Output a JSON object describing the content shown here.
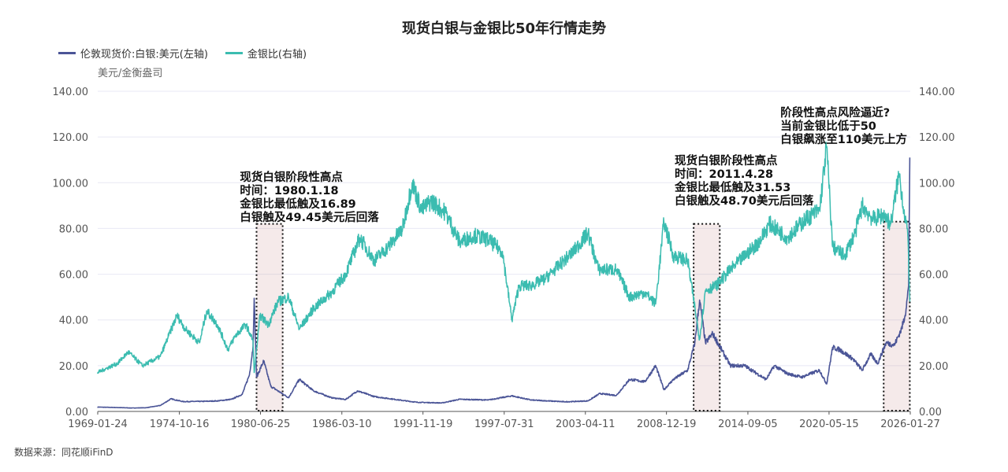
{
  "chart_data": {
    "type": "line",
    "title": "现货白银与金银比50年行情走势",
    "unit_label": "美元/金衡盎司",
    "source": "数据来源：同花顺iFinD",
    "x_ticks": [
      "1969-01-24",
      "1974-10-16",
      "1980-06-25",
      "1986-03-10",
      "1991-11-19",
      "1997-07-31",
      "2003-04-11",
      "2008-12-19",
      "2014-09-05",
      "2020-05-15",
      "2026-01-27"
    ],
    "xlim": [
      "1969-01-24",
      "2026-01-27"
    ],
    "y_left": {
      "lim": [
        0,
        140
      ],
      "ticks": [
        "0.00",
        "20.00",
        "40.00",
        "60.00",
        "80.00",
        "100.00",
        "120.00",
        "140.00"
      ]
    },
    "y_right": {
      "lim": [
        0,
        140
      ],
      "ticks": [
        "0.00",
        "20.00",
        "40.00",
        "60.00",
        "80.00",
        "100.00",
        "120.00",
        "140.00"
      ]
    },
    "grid": true,
    "legend_position": "top-left",
    "series": [
      {
        "name": "伦敦现货价:白银:美元(左轴)",
        "axis": "left",
        "color": "#4b5597",
        "points": [
          [
            "1969-01",
            1.9
          ],
          [
            "1970-06",
            1.7
          ],
          [
            "1971-06",
            1.5
          ],
          [
            "1972-06",
            1.6
          ],
          [
            "1973-06",
            2.6
          ],
          [
            "1974-03",
            5.5
          ],
          [
            "1975-01",
            4.3
          ],
          [
            "1976-06",
            4.4
          ],
          [
            "1977-06",
            4.6
          ],
          [
            "1978-06",
            5.3
          ],
          [
            "1979-03",
            7.5
          ],
          [
            "1979-09",
            16
          ],
          [
            "1979-12",
            28
          ],
          [
            "1980-01",
            49.45
          ],
          [
            "1980-03",
            15
          ],
          [
            "1980-09",
            22
          ],
          [
            "1981-03",
            11
          ],
          [
            "1982-06",
            6
          ],
          [
            "1983-03",
            14
          ],
          [
            "1984-03",
            9
          ],
          [
            "1985-06",
            6
          ],
          [
            "1986-06",
            5.2
          ],
          [
            "1987-04",
            9
          ],
          [
            "1988-06",
            6.5
          ],
          [
            "1990-06",
            4.8
          ],
          [
            "1991-06",
            4
          ],
          [
            "1993-03",
            3.7
          ],
          [
            "1994-06",
            5.3
          ],
          [
            "1996-06",
            5
          ],
          [
            "1998-02",
            6.8
          ],
          [
            "1999-06",
            5
          ],
          [
            "2001-11",
            4.2
          ],
          [
            "2003-06",
            4.6
          ],
          [
            "2004-04",
            7.8
          ],
          [
            "2005-06",
            7
          ],
          [
            "2006-05",
            14
          ],
          [
            "2007-06",
            13
          ],
          [
            "2008-03",
            20
          ],
          [
            "2008-10",
            9.5
          ],
          [
            "2009-06",
            14
          ],
          [
            "2010-06",
            18
          ],
          [
            "2010-12",
            30
          ],
          [
            "2011-04",
            48.7
          ],
          [
            "2011-09",
            30
          ],
          [
            "2012-03",
            34
          ],
          [
            "2013-06",
            20
          ],
          [
            "2014-06",
            20
          ],
          [
            "2015-12",
            14
          ],
          [
            "2016-07",
            20
          ],
          [
            "2017-06",
            16.5
          ],
          [
            "2018-06",
            15
          ],
          [
            "2019-09",
            18
          ],
          [
            "2020-03",
            12
          ],
          [
            "2020-08",
            28
          ],
          [
            "2021-02",
            27
          ],
          [
            "2022-01",
            23
          ],
          [
            "2022-09",
            18
          ],
          [
            "2023-04",
            25
          ],
          [
            "2023-10",
            21
          ],
          [
            "2024-05",
            30
          ],
          [
            "2024-12",
            29
          ],
          [
            "2025-06",
            36
          ],
          [
            "2025-09",
            42
          ],
          [
            "2025-11",
            50
          ],
          [
            "2025-12",
            55
          ],
          [
            "2026-01",
            111
          ]
        ]
      },
      {
        "name": "金银比(右轴)",
        "axis": "right",
        "color": "#3bbcb0",
        "points": [
          [
            "1969-01",
            17
          ],
          [
            "1970-06",
            21
          ],
          [
            "1971-03",
            26
          ],
          [
            "1972-03",
            20
          ],
          [
            "1973-06",
            24
          ],
          [
            "1974-01",
            33
          ],
          [
            "1974-08",
            42
          ],
          [
            "1975-03",
            36
          ],
          [
            "1976-03",
            30
          ],
          [
            "1976-09",
            44
          ],
          [
            "1977-06",
            38
          ],
          [
            "1978-03",
            27
          ],
          [
            "1978-09",
            33
          ],
          [
            "1979-06",
            38
          ],
          [
            "1979-12",
            31
          ],
          [
            "1980-01",
            17
          ],
          [
            "1980-06",
            42
          ],
          [
            "1981-01",
            38
          ],
          [
            "1981-09",
            48
          ],
          [
            "1982-06",
            50
          ],
          [
            "1983-03",
            36
          ],
          [
            "1984-03",
            45
          ],
          [
            "1985-06",
            52
          ],
          [
            "1986-06",
            60
          ],
          [
            "1987-06",
            76
          ],
          [
            "1988-06",
            66
          ],
          [
            "1989-06",
            72
          ],
          [
            "1990-06",
            80
          ],
          [
            "1991-02",
            100
          ],
          [
            "1991-10",
            88
          ],
          [
            "1992-06",
            92
          ],
          [
            "1993-06",
            87
          ],
          [
            "1994-06",
            74
          ],
          [
            "1995-06",
            77
          ],
          [
            "1996-06",
            75
          ],
          [
            "1997-06",
            70
          ],
          [
            "1998-02",
            40
          ],
          [
            "1998-08",
            55
          ],
          [
            "1999-06",
            55
          ],
          [
            "2000-06",
            58
          ],
          [
            "2001-06",
            64
          ],
          [
            "2002-06",
            70
          ],
          [
            "2003-06",
            78
          ],
          [
            "2004-03",
            62
          ],
          [
            "2005-06",
            62
          ],
          [
            "2006-05",
            50
          ],
          [
            "2007-06",
            52
          ],
          [
            "2008-03",
            47
          ],
          [
            "2008-10",
            83
          ],
          [
            "2009-06",
            68
          ],
          [
            "2010-06",
            66
          ],
          [
            "2011-04",
            31.53
          ],
          [
            "2011-09",
            53
          ],
          [
            "2012-06",
            55
          ],
          [
            "2013-06",
            62
          ],
          [
            "2014-06",
            68
          ],
          [
            "2015-06",
            74
          ],
          [
            "2016-03",
            82
          ],
          [
            "2017-06",
            76
          ],
          [
            "2018-09",
            84
          ],
          [
            "2019-09",
            88
          ],
          [
            "2020-03",
            116
          ],
          [
            "2020-08",
            72
          ],
          [
            "2021-06",
            68
          ],
          [
            "2022-03",
            78
          ],
          [
            "2022-09",
            90
          ],
          [
            "2023-06",
            84
          ],
          [
            "2024-03",
            86
          ],
          [
            "2024-09",
            82
          ],
          [
            "2025-04",
            104
          ],
          [
            "2025-08",
            88
          ],
          [
            "2025-11",
            80
          ],
          [
            "2026-01",
            48
          ]
        ]
      }
    ],
    "highlight_boxes": [
      {
        "from": "1980-03",
        "to": "1982-01",
        "top": 82
      },
      {
        "from": "2010-11",
        "to": "2012-09",
        "top": 82
      },
      {
        "from": "2024-03",
        "to": "2026-01",
        "top": 83
      }
    ],
    "annotations": [
      {
        "at": "1979-01",
        "level": 105,
        "text": "现货白银阶段性高点\n时间：1980.1.18\n金银比最低触及16.89\n白银触及49.45美元后回落"
      },
      {
        "at": "2009-07",
        "level": 112,
        "text": "现货白银阶段性高点\n时间：2011.4.28\n金银比最低触及31.53\n白银触及48.70美元后回落"
      },
      {
        "at": "2019-08",
        "level": 133,
        "text": "阶段性高点风险逼近?\n当前金银比低于50\n白银飙涨至110美元上方"
      }
    ]
  }
}
